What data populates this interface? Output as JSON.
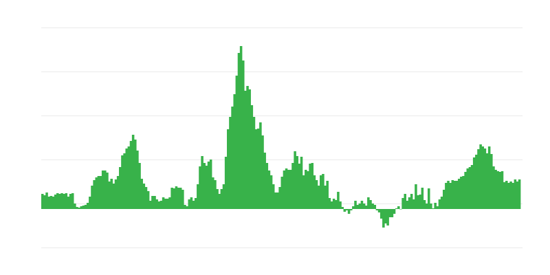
{
  "chart_data": {
    "type": "bar",
    "title": "",
    "xlabel": "",
    "ylabel": "",
    "ylim": [
      -56,
      264
    ],
    "gridlines": [
      -56,
      8,
      72,
      136,
      200,
      264
    ],
    "grid": true,
    "legend": "none",
    "colors": {
      "bar": "#38b24a",
      "grid": "#ebebeb"
    },
    "values": [
      22,
      20,
      24,
      18,
      19,
      18,
      21,
      23,
      22,
      23,
      22,
      23,
      18,
      22,
      23,
      8,
      3,
      2,
      4,
      5,
      6,
      9,
      18,
      34,
      42,
      46,
      48,
      48,
      56,
      56,
      53,
      40,
      44,
      37,
      43,
      48,
      61,
      78,
      81,
      88,
      91,
      99,
      108,
      101,
      85,
      67,
      44,
      37,
      32,
      26,
      12,
      19,
      19,
      14,
      11,
      12,
      17,
      15,
      15,
      17,
      31,
      30,
      33,
      31,
      31,
      28,
      6,
      4,
      14,
      17,
      12,
      16,
      36,
      62,
      77,
      67,
      63,
      69,
      72,
      46,
      42,
      29,
      22,
      29,
      36,
      76,
      116,
      134,
      149,
      167,
      194,
      227,
      237,
      216,
      172,
      179,
      174,
      151,
      134,
      116,
      117,
      126,
      107,
      82,
      67,
      56,
      49,
      36,
      24,
      24,
      32,
      47,
      56,
      59,
      57,
      57,
      67,
      84,
      77,
      66,
      76,
      49,
      57,
      55,
      66,
      67,
      49,
      42,
      34,
      49,
      51,
      34,
      41,
      16,
      11,
      15,
      13,
      25,
      11,
      3,
      -4,
      -2,
      -7,
      -2,
      4,
      12,
      6,
      8,
      12,
      8,
      5,
      17,
      13,
      8,
      6,
      -2,
      -5,
      -14,
      -27,
      -21,
      -24,
      -12,
      -12,
      -7,
      1,
      4,
      0,
      16,
      22,
      12,
      17,
      22,
      14,
      36,
      20,
      21,
      31,
      13,
      8,
      30,
      8,
      1,
      9,
      4,
      14,
      18,
      28,
      38,
      41,
      38,
      42,
      41,
      41,
      44,
      47,
      48,
      54,
      59,
      61,
      64,
      75,
      79,
      87,
      94,
      91,
      88,
      81,
      91,
      80,
      62,
      57,
      55,
      54,
      55,
      39,
      41,
      38,
      40,
      38,
      43,
      40,
      43
    ]
  }
}
